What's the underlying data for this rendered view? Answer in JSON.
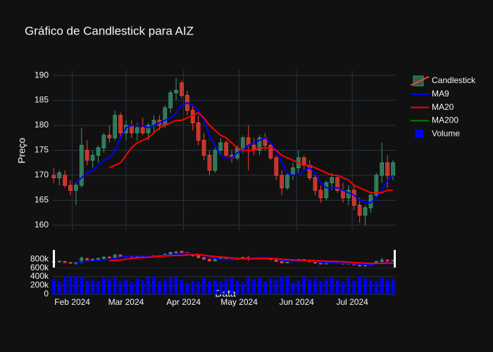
{
  "chart_data": {
    "type": "candlestick",
    "title": "Gráfico de Candlestick para AIZ",
    "xlabel": "Data",
    "ylabel": "Preço",
    "candle_name": "Candlestick",
    "increasing_color": "#3d9970",
    "decreasing_color": "#ff4136",
    "grid": true,
    "rangeslider": true,
    "x": [
      0,
      3,
      6,
      9,
      12,
      15,
      18,
      21,
      24,
      27,
      30,
      33,
      36,
      39,
      42,
      45,
      48,
      51,
      54,
      57,
      60,
      63,
      66,
      69,
      72,
      75,
      78,
      81,
      84,
      87,
      90,
      93,
      96,
      99,
      102,
      105,
      108,
      111,
      114,
      117,
      120,
      123,
      126,
      129,
      132,
      135,
      138,
      141,
      144,
      147,
      150,
      153,
      156,
      159,
      162,
      165,
      168,
      171,
      174,
      177,
      180,
      183
    ],
    "xlim": [
      -0.5,
      184.5
    ],
    "xticks": [
      {
        "value": 10,
        "label": "Feb 2024"
      },
      {
        "value": 39,
        "label": "Mar 2024"
      },
      {
        "value": 70,
        "label": "Apr 2024"
      },
      {
        "value": 100,
        "label": "May 2024"
      },
      {
        "value": 131,
        "label": "Jun 2024"
      },
      {
        "value": 161,
        "label": "Jul 2024"
      }
    ],
    "ylim": [
      159,
      191
    ],
    "yticks": [
      160,
      165,
      170,
      175,
      180,
      185,
      190
    ],
    "open": [
      170,
      169.5,
      170,
      168,
      167,
      168,
      175,
      173,
      174,
      175.5,
      178,
      177.5,
      182,
      178.5,
      180,
      178.5,
      179.5,
      178.5,
      180,
      181,
      180,
      183.5,
      186.5,
      188.5,
      186,
      183,
      180.5,
      177,
      174,
      171,
      175,
      176.5,
      174,
      173.5,
      175.5,
      177.5,
      176,
      175,
      177.5,
      176,
      173.5,
      170,
      167.5,
      170,
      171.5,
      173.5,
      172,
      169.5,
      167,
      165.5,
      168.5,
      169.5,
      167,
      165.5,
      167,
      164,
      162,
      163.5,
      166,
      170,
      172.5,
      170
    ],
    "high": [
      171.5,
      171,
      171,
      169,
      168.5,
      179.5,
      177,
      175,
      176,
      178.5,
      180,
      183,
      182.5,
      181,
      181,
      180.5,
      181.5,
      180.5,
      182,
      182,
      184,
      187,
      189.5,
      189,
      187,
      184,
      182,
      178.5,
      175,
      175.5,
      177.5,
      177,
      175,
      176,
      178,
      180,
      177.5,
      178,
      178.5,
      176.5,
      174,
      171,
      170.5,
      172.5,
      175,
      174,
      173,
      170,
      168,
      169,
      170.5,
      170,
      168.5,
      168,
      168,
      165.5,
      164,
      166.5,
      170.5,
      176.5,
      174,
      173
    ],
    "low": [
      168.5,
      168,
      167.5,
      166,
      164,
      167.5,
      172,
      171.5,
      172.5,
      174.5,
      176.5,
      177,
      177.5,
      177,
      177.5,
      177,
      178,
      177,
      178.5,
      179,
      179.5,
      182.5,
      185,
      185.5,
      182,
      179,
      176,
      173,
      170,
      170.5,
      174,
      173.5,
      172.5,
      173,
      174.5,
      171,
      174,
      174,
      175,
      173,
      169,
      166,
      167,
      169,
      170.5,
      171,
      169,
      166,
      164.5,
      165,
      167,
      166.5,
      164.5,
      164,
      163,
      160.5,
      160,
      162.5,
      165.5,
      168.5,
      167.5,
      169
    ],
    "close": [
      169.5,
      170.5,
      168,
      167,
      168,
      176,
      173,
      174,
      175.5,
      178,
      177.5,
      182,
      178.5,
      180,
      178.5,
      179.5,
      178.5,
      180,
      181,
      180,
      183.5,
      186.5,
      187,
      186,
      183,
      180.5,
      177,
      174,
      171,
      175,
      176.5,
      174,
      173.5,
      175.5,
      177.5,
      176,
      175,
      177.5,
      176,
      173.5,
      170,
      167.5,
      170,
      171.5,
      173.5,
      172,
      169.5,
      167,
      165.5,
      168.5,
      169.5,
      167,
      165.5,
      167,
      164,
      162,
      163.5,
      166,
      170,
      172.5,
      170,
      172.5
    ],
    "series": [
      {
        "name": "MA9",
        "color": "#0000ff",
        "values": [
          null,
          null,
          null,
          null,
          168.5,
          169.5,
          170.5,
          171,
          172,
          173,
          173.5,
          175,
          177.5,
          179.5,
          180,
          180,
          180,
          179.5,
          180,
          180.5,
          181,
          181.5,
          182.5,
          184,
          184.5,
          184,
          183,
          181,
          178,
          176,
          174,
          173.5,
          173.5,
          174.5,
          175,
          176,
          176.5,
          177,
          177.5,
          176.5,
          175,
          172.5,
          170.5,
          170,
          170,
          171,
          171.5,
          170.5,
          168.5,
          167.5,
          167.5,
          167.5,
          167,
          166.5,
          166,
          165,
          164.5,
          164.5,
          165.5,
          167,
          169,
          170
        ]
      },
      {
        "name": "MA20",
        "color": "#ff0000",
        "values": [
          null,
          null,
          null,
          null,
          null,
          null,
          null,
          null,
          null,
          null,
          171.5,
          172,
          172.5,
          174,
          175.5,
          176.5,
          177,
          177.5,
          178.5,
          179.5,
          180,
          180.5,
          181,
          181,
          181.5,
          182,
          182.5,
          181.5,
          180,
          179,
          178,
          177.5,
          176.5,
          175.5,
          175,
          175,
          175,
          175.5,
          175.5,
          175.5,
          175,
          174,
          173.5,
          173,
          172.5,
          172,
          172,
          171.5,
          171,
          170.5,
          170,
          170,
          169.5,
          169,
          168,
          167.5,
          167,
          166.5,
          166.5,
          166.5,
          167,
          167
        ]
      },
      {
        "name": "MA200",
        "color": "#008000",
        "values": [
          null,
          null,
          null,
          null,
          null,
          null,
          null,
          null,
          null,
          null,
          null,
          null,
          null,
          null,
          null,
          null,
          null,
          null,
          null,
          null,
          null,
          null,
          null,
          null,
          null,
          null,
          null,
          null,
          null,
          null,
          null,
          null,
          null,
          null,
          null,
          null,
          null,
          null,
          null,
          null,
          null,
          null,
          null,
          null,
          null,
          null,
          null,
          null,
          null,
          null,
          null,
          null,
          null,
          null,
          null,
          null,
          null,
          null,
          null,
          null,
          null,
          null
        ]
      }
    ],
    "volume": {
      "name": "Volume",
      "color": "#0000ff",
      "ylim": [
        0,
        850000
      ],
      "yticks": [
        {
          "value": 0,
          "label": "0"
        },
        {
          "value": 200000,
          "label": "200k"
        },
        {
          "value": 400000,
          "label": "400k"
        },
        {
          "value": 600000,
          "label": "600k"
        },
        {
          "value": 800000,
          "label": "800k"
        }
      ],
      "values": [
        350000,
        280000,
        410000,
        390000,
        420000,
        400000,
        310000,
        330000,
        290000,
        370000,
        350000,
        380000,
        300000,
        340000,
        270000,
        360000,
        320000,
        390000,
        410000,
        300000,
        350000,
        380000,
        400000,
        330000,
        260000,
        310000,
        280000,
        370000,
        300000,
        330000,
        290000,
        350000,
        380000,
        310000,
        280000,
        400000,
        340000,
        370000,
        300000,
        360000,
        330000,
        410000,
        390000,
        270000,
        310000,
        400000,
        340000,
        360000,
        300000,
        350000,
        380000,
        320000,
        290000,
        370000,
        310000,
        410000,
        360000,
        340000,
        300000,
        380000,
        330000,
        350000
      ]
    }
  }
}
